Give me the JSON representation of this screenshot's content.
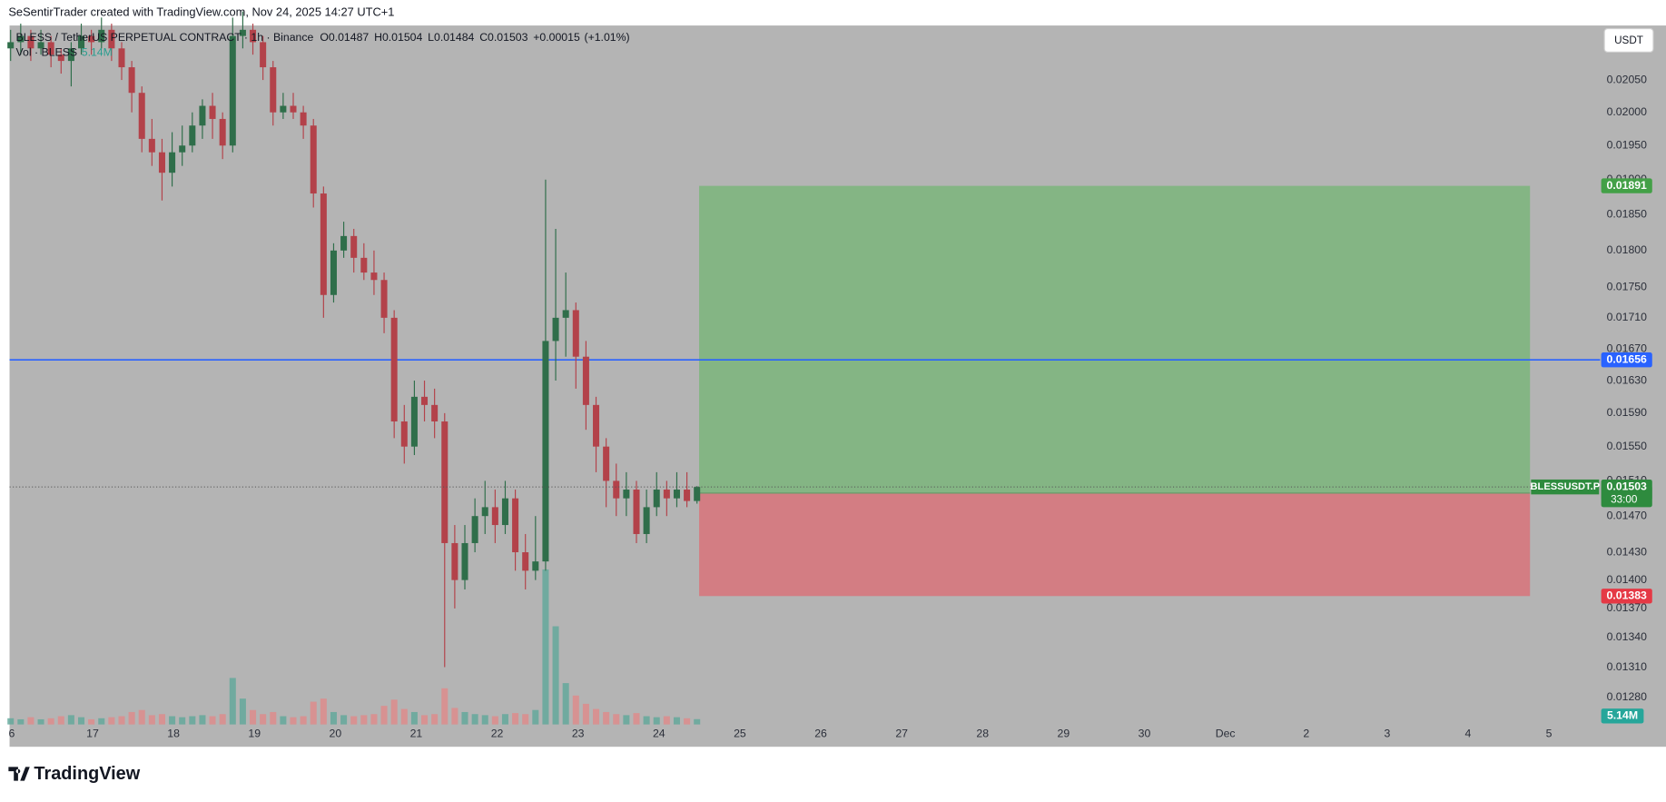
{
  "header": {
    "attribution": "SeSentirTrader created with TradingView.com, Nov 24, 2025 14:27 UTC+1"
  },
  "chart_data": {
    "type": "candlestick",
    "symbol_line": "BLESS / TetherUS PERPETUAL CONTRACT · 1h · Binance",
    "ohlc": [
      {
        "key": "O",
        "value": 0.01487
      },
      {
        "key": "H",
        "value": 0.01504
      },
      {
        "key": "L",
        "value": 0.01484
      },
      {
        "key": "C",
        "value": 0.01503
      }
    ],
    "change": {
      "value": 0.00015,
      "label": "+0.00015"
    },
    "change_pct": {
      "value": 1.01,
      "label": "(+1.01%)"
    },
    "volume_title": "Vol · BLESS",
    "volume_last": {
      "value": 5140000,
      "label": "5.14M"
    },
    "currency": "USDT",
    "log_scale": true,
    "ylim": [
      0.01254,
      0.02137
    ],
    "yticks": [
      {
        "value": 0.0205,
        "label": "0.02050"
      },
      {
        "value": 0.02,
        "label": "0.02000"
      },
      {
        "value": 0.0195,
        "label": "0.01950"
      },
      {
        "value": 0.019,
        "label": "0.01900"
      },
      {
        "value": 0.0185,
        "label": "0.01850"
      },
      {
        "value": 0.018,
        "label": "0.01800"
      },
      {
        "value": 0.0175,
        "label": "0.01750"
      },
      {
        "value": 0.0171,
        "label": "0.01710"
      },
      {
        "value": 0.0167,
        "label": "0.01670"
      },
      {
        "value": 0.0163,
        "label": "0.01630"
      },
      {
        "value": 0.0159,
        "label": "0.01590"
      },
      {
        "value": 0.0155,
        "label": "0.01550"
      },
      {
        "value": 0.0151,
        "label": "0.01510"
      },
      {
        "value": 0.0147,
        "label": "0.01470"
      },
      {
        "value": 0.0143,
        "label": "0.01430"
      },
      {
        "value": 0.014,
        "label": "0.01400"
      },
      {
        "value": 0.0137,
        "label": "0.01370"
      },
      {
        "value": 0.0134,
        "label": "0.01340"
      },
      {
        "value": 0.0131,
        "label": "0.01310"
      },
      {
        "value": 0.0128,
        "label": "0.01280"
      }
    ],
    "xticks": [
      "6",
      "17",
      "18",
      "19",
      "20",
      "21",
      "22",
      "23",
      "24",
      "25",
      "26",
      "27",
      "28",
      "29",
      "30",
      "Dec",
      "2",
      "3",
      "4",
      "5"
    ],
    "up_color": "#2f6e4a",
    "down_color": "#b3424a",
    "candles": [
      [
        0.021,
        0.0213,
        0.0208,
        0.0211
      ],
      [
        0.0211,
        0.0214,
        0.0209,
        0.0212
      ],
      [
        0.0212,
        0.0213,
        0.0208,
        0.021
      ],
      [
        0.021,
        0.0213,
        0.0209,
        0.0211
      ],
      [
        0.0211,
        0.0212,
        0.0207,
        0.0209
      ],
      [
        0.0209,
        0.021,
        0.0206,
        0.0208
      ],
      [
        0.0208,
        0.0211,
        0.0204,
        0.021
      ],
      [
        0.021,
        0.0214,
        0.0209,
        0.0212
      ],
      [
        0.0212,
        0.0213,
        0.0209,
        0.0211
      ],
      [
        0.0211,
        0.0215,
        0.021,
        0.0213
      ],
      [
        0.0213,
        0.0214,
        0.0208,
        0.021
      ],
      [
        0.021,
        0.0211,
        0.0205,
        0.0207
      ],
      [
        0.0207,
        0.0208,
        0.02,
        0.0203
      ],
      [
        0.0203,
        0.0204,
        0.0194,
        0.0196
      ],
      [
        0.0196,
        0.0199,
        0.0192,
        0.0194
      ],
      [
        0.0194,
        0.0196,
        0.0187,
        0.0191
      ],
      [
        0.0191,
        0.0197,
        0.0189,
        0.0194
      ],
      [
        0.0194,
        0.0198,
        0.0192,
        0.0195
      ],
      [
        0.0195,
        0.02,
        0.0194,
        0.0198
      ],
      [
        0.0198,
        0.0202,
        0.0196,
        0.0201
      ],
      [
        0.0201,
        0.0203,
        0.0196,
        0.0199
      ],
      [
        0.0199,
        0.02,
        0.0193,
        0.0195
      ],
      [
        0.0195,
        0.0215,
        0.0194,
        0.0212
      ],
      [
        0.0212,
        0.0216,
        0.021,
        0.0213
      ],
      [
        0.0213,
        0.0214,
        0.0209,
        0.0211
      ],
      [
        0.0211,
        0.0212,
        0.0205,
        0.0207
      ],
      [
        0.0207,
        0.0208,
        0.0198,
        0.02
      ],
      [
        0.02,
        0.0203,
        0.0199,
        0.0201
      ],
      [
        0.0201,
        0.0203,
        0.0199,
        0.02
      ],
      [
        0.02,
        0.0201,
        0.0196,
        0.0198
      ],
      [
        0.0198,
        0.0199,
        0.0186,
        0.0188
      ],
      [
        0.0188,
        0.0189,
        0.0171,
        0.0174
      ],
      [
        0.0174,
        0.0181,
        0.0173,
        0.018
      ],
      [
        0.018,
        0.0184,
        0.0179,
        0.0182
      ],
      [
        0.0182,
        0.0183,
        0.0177,
        0.0179
      ],
      [
        0.0179,
        0.0181,
        0.0176,
        0.0177
      ],
      [
        0.0177,
        0.018,
        0.0174,
        0.0176
      ],
      [
        0.0176,
        0.0177,
        0.0169,
        0.0171
      ],
      [
        0.0171,
        0.0172,
        0.0156,
        0.0158
      ],
      [
        0.0158,
        0.016,
        0.0153,
        0.0155
      ],
      [
        0.0155,
        0.0163,
        0.0154,
        0.0161
      ],
      [
        0.0161,
        0.0163,
        0.0158,
        0.016
      ],
      [
        0.016,
        0.0162,
        0.0156,
        0.0158
      ],
      [
        0.0158,
        0.0159,
        0.0131,
        0.0144
      ],
      [
        0.0144,
        0.0146,
        0.0137,
        0.014
      ],
      [
        0.014,
        0.0146,
        0.0139,
        0.0144
      ],
      [
        0.0144,
        0.0149,
        0.0143,
        0.0147
      ],
      [
        0.0147,
        0.0151,
        0.0145,
        0.0148
      ],
      [
        0.0148,
        0.015,
        0.0144,
        0.0146
      ],
      [
        0.0146,
        0.0151,
        0.0145,
        0.0149
      ],
      [
        0.0149,
        0.015,
        0.0141,
        0.0143
      ],
      [
        0.0143,
        0.0145,
        0.0139,
        0.0141
      ],
      [
        0.0141,
        0.0147,
        0.014,
        0.0142
      ],
      [
        0.0142,
        0.019,
        0.0141,
        0.0168
      ],
      [
        0.0168,
        0.0183,
        0.0163,
        0.0171
      ],
      [
        0.0171,
        0.0177,
        0.0166,
        0.0172
      ],
      [
        0.0172,
        0.0173,
        0.0162,
        0.0166
      ],
      [
        0.0166,
        0.0168,
        0.0157,
        0.016
      ],
      [
        0.016,
        0.0161,
        0.0152,
        0.0155
      ],
      [
        0.0155,
        0.0156,
        0.0148,
        0.0151
      ],
      [
        0.0151,
        0.0153,
        0.0147,
        0.0149
      ],
      [
        0.0149,
        0.0152,
        0.0147,
        0.015
      ],
      [
        0.015,
        0.0151,
        0.0144,
        0.0145
      ],
      [
        0.0145,
        0.015,
        0.0144,
        0.0148
      ],
      [
        0.0148,
        0.0152,
        0.0147,
        0.015
      ],
      [
        0.015,
        0.0151,
        0.0147,
        0.0149
      ],
      [
        0.0149,
        0.0152,
        0.0148,
        0.015
      ],
      [
        0.015,
        0.0152,
        0.0148,
        0.01487
      ],
      [
        0.01487,
        0.01504,
        0.01484,
        0.01503
      ]
    ],
    "volumes": [
      6000000,
      5000000,
      7000000,
      5000000,
      6000000,
      8000000,
      9000000,
      7000000,
      5000000,
      6000000,
      7000000,
      8000000,
      12000000,
      14000000,
      9000000,
      10000000,
      8000000,
      7000000,
      8000000,
      9000000,
      8000000,
      10000000,
      45000000,
      25000000,
      14000000,
      10000000,
      12000000,
      8000000,
      7000000,
      8000000,
      22000000,
      25000000,
      12000000,
      9000000,
      8000000,
      9000000,
      10000000,
      18000000,
      24000000,
      15000000,
      12000000,
      9000000,
      10000000,
      35000000,
      16000000,
      12000000,
      10000000,
      9000000,
      8000000,
      10000000,
      11000000,
      10000000,
      14000000,
      150000000,
      95000000,
      40000000,
      28000000,
      20000000,
      15000000,
      12000000,
      10000000,
      9000000,
      11000000,
      8000000,
      7000000,
      8000000,
      7000000,
      6000000,
      5140000
    ],
    "volume_ylim": [
      0,
      185000000
    ],
    "horizontal_line": {
      "value": 0.01656,
      "color": "#2962ff"
    },
    "last_price": 0.01503,
    "last_price_symbol": "BLESSUSDT.P",
    "countdown": "33:00",
    "position": {
      "target": 0.01891,
      "entry": 0.01496,
      "stop": 0.01383,
      "profit_color": "#84b584",
      "loss_color": "#d37d83"
    }
  },
  "footer": {
    "brand": "TradingView"
  }
}
